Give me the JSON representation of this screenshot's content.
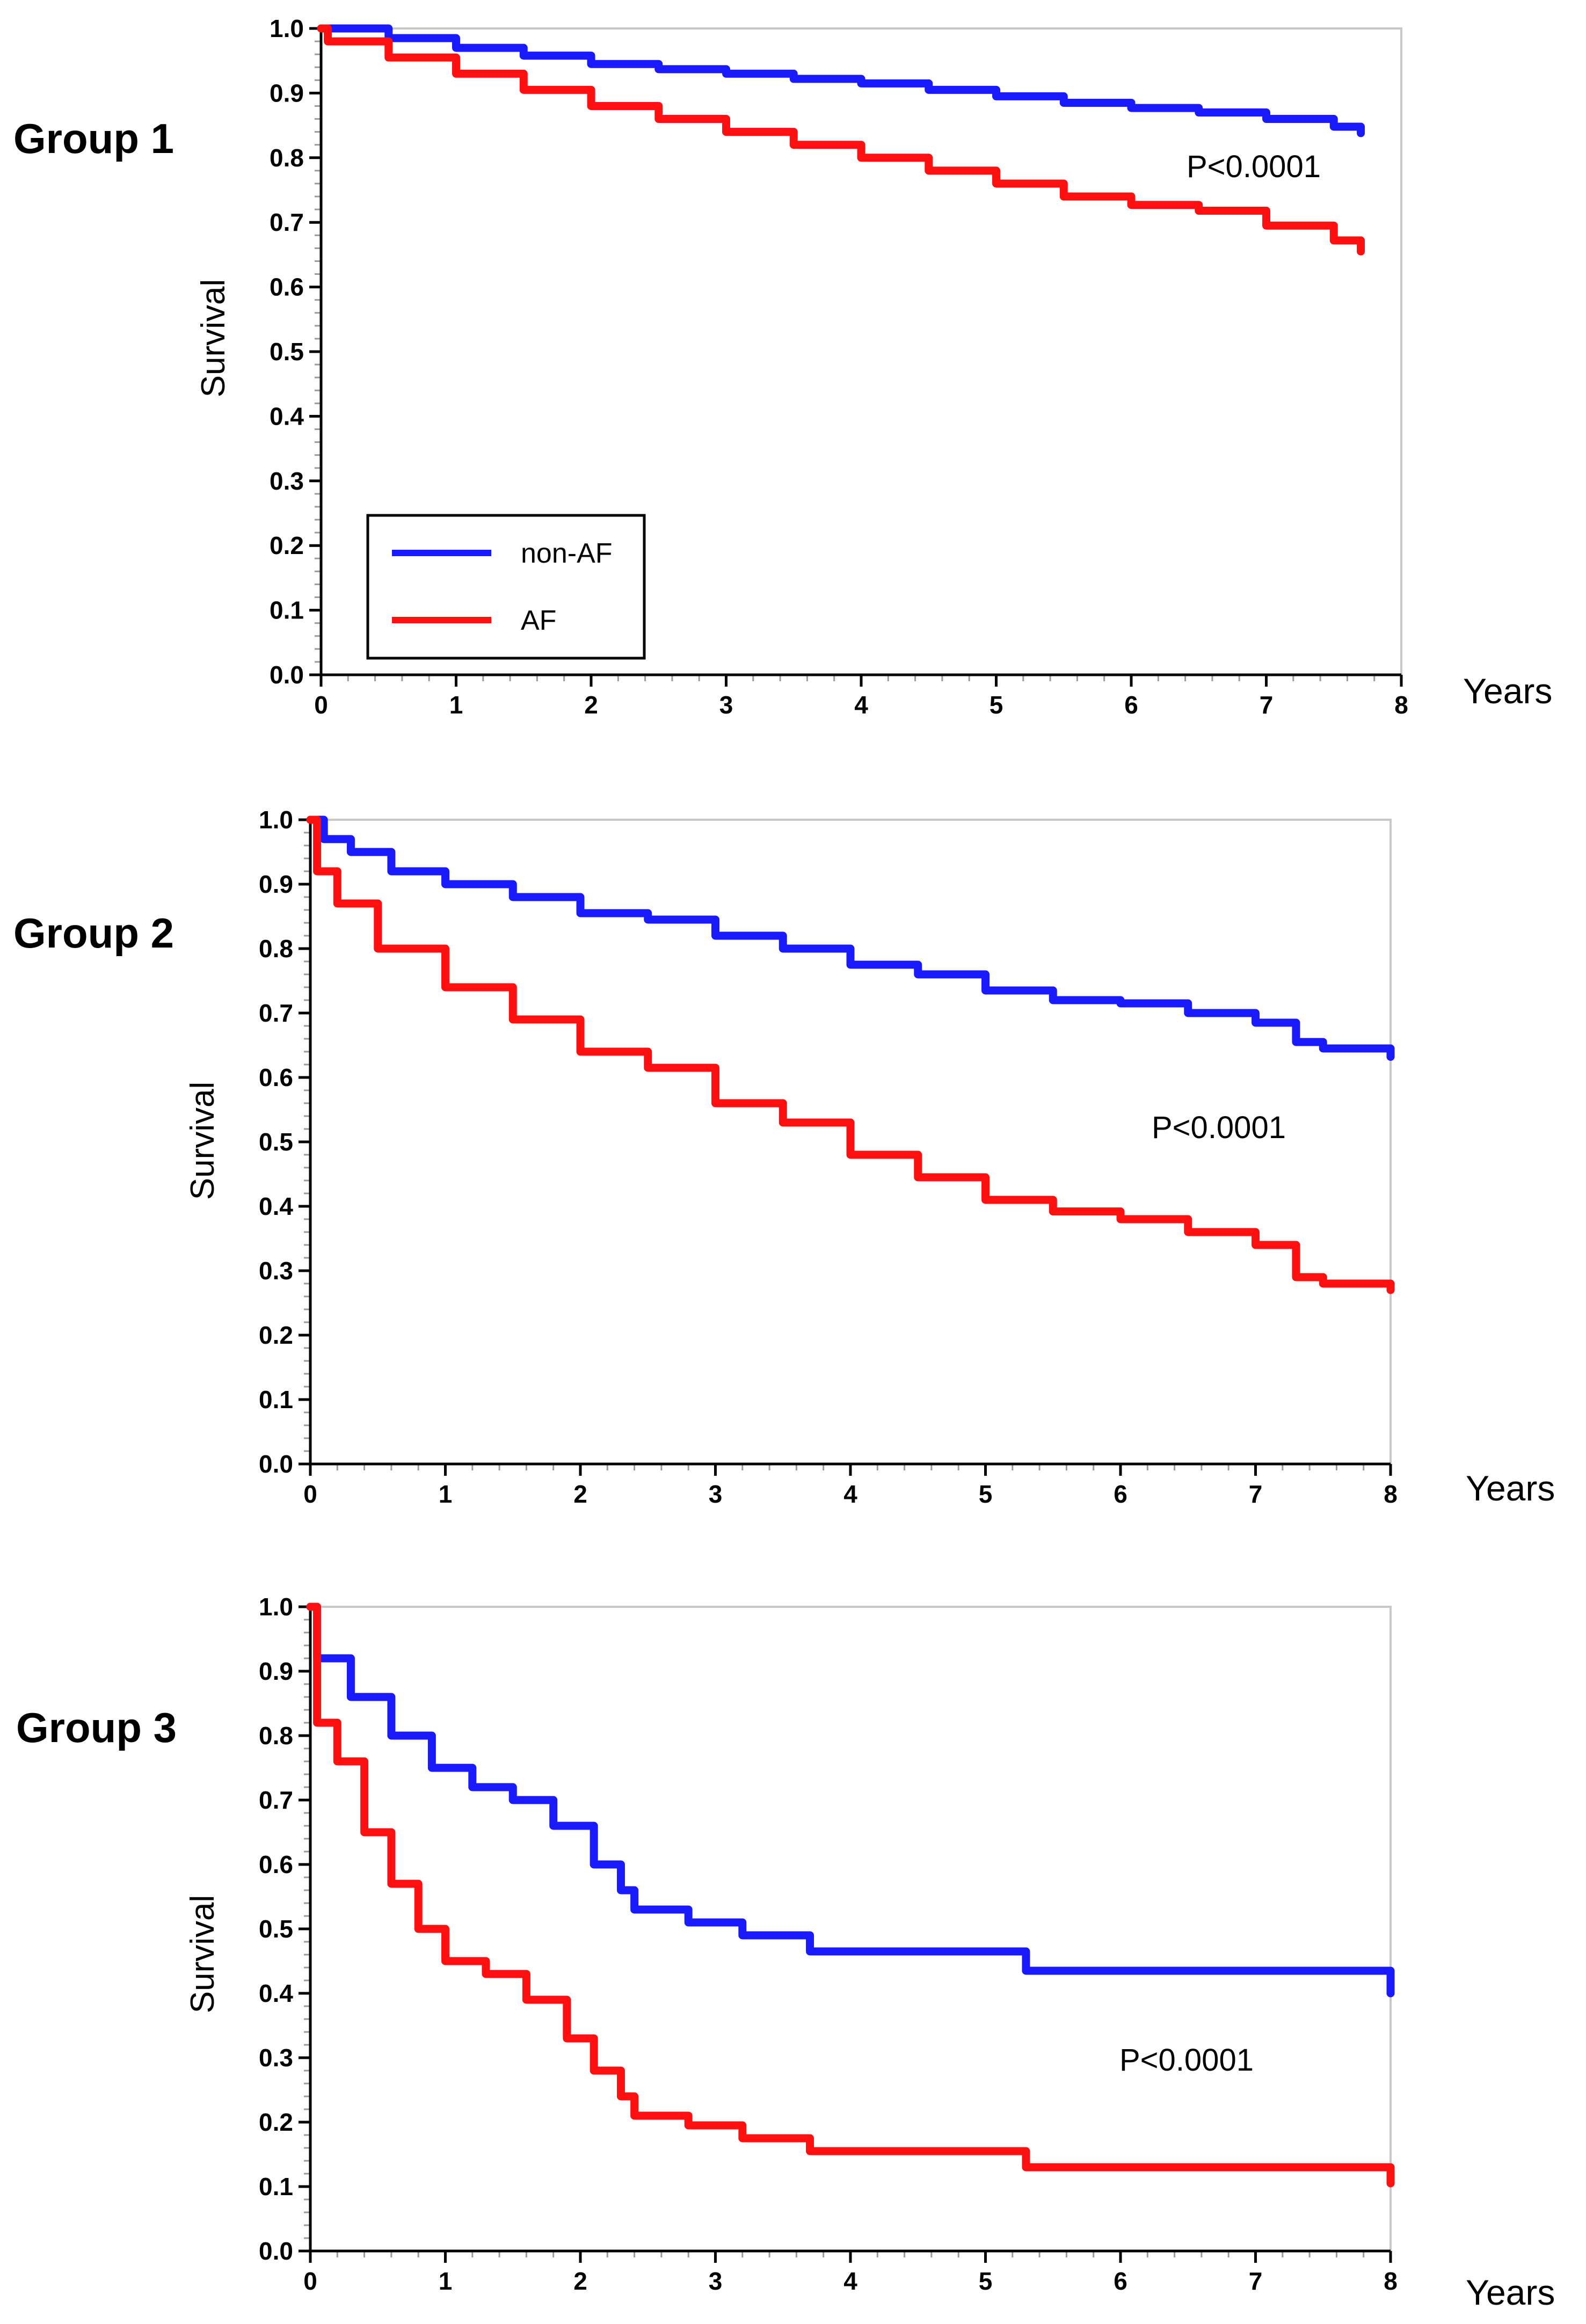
{
  "colors": {
    "non_af": "#1a1aff",
    "af": "#ff1010",
    "frame": "#c8c8c8",
    "axis": "#000000",
    "minor_tick": "#9a9a9a"
  },
  "legend": {
    "items": [
      {
        "label": "non-AF",
        "color": "#1a1aff"
      },
      {
        "label": "AF",
        "color": "#ff1010"
      }
    ],
    "shown_in_panel": 1
  },
  "chart_data": [
    {
      "type": "line",
      "title": "Group  1",
      "ylabel": "Survival",
      "xlabel": "Years",
      "xlim": [
        0,
        8
      ],
      "ylim": [
        0,
        1
      ],
      "xticks": [
        "0",
        "1",
        "2",
        "3",
        "4",
        "5",
        "6",
        "7",
        "8"
      ],
      "yticks": [
        "0.0",
        "0.1",
        "0.2",
        "0.3",
        "0.4",
        "0.5",
        "0.6",
        "0.7",
        "0.8",
        "0.9",
        "1.0"
      ],
      "annotation": {
        "text": "P<0.0001"
      },
      "series": [
        {
          "name": "non-AF",
          "x": [
            0,
            0.5,
            1,
            1.5,
            2,
            2.5,
            3,
            3.5,
            4,
            4.5,
            5,
            5.5,
            6,
            6.5,
            7,
            7.5,
            7.7
          ],
          "y": [
            1.0,
            0.985,
            0.97,
            0.958,
            0.945,
            0.937,
            0.93,
            0.922,
            0.915,
            0.905,
            0.895,
            0.885,
            0.877,
            0.87,
            0.86,
            0.848,
            0.838
          ]
        },
        {
          "name": "AF",
          "x": [
            0,
            0.05,
            0.5,
            1,
            1.5,
            2,
            2.5,
            3,
            3.5,
            4,
            4.5,
            5,
            5.5,
            6,
            6.5,
            7,
            7.5,
            7.7
          ],
          "y": [
            1.0,
            0.98,
            0.955,
            0.93,
            0.905,
            0.88,
            0.86,
            0.84,
            0.82,
            0.8,
            0.78,
            0.76,
            0.74,
            0.727,
            0.718,
            0.695,
            0.672,
            0.655
          ]
        }
      ]
    },
    {
      "type": "line",
      "title": "Group  2",
      "ylabel": "Survival",
      "xlabel": "Years",
      "xlim": [
        0,
        8
      ],
      "ylim": [
        0,
        1
      ],
      "xticks": [
        "0",
        "1",
        "2",
        "3",
        "4",
        "5",
        "6",
        "7",
        "8"
      ],
      "yticks": [
        "0.0",
        "0.1",
        "0.2",
        "0.3",
        "0.4",
        "0.5",
        "0.6",
        "0.7",
        "0.8",
        "0.9",
        "1.0"
      ],
      "annotation": {
        "text": "P<0.0001"
      },
      "series": [
        {
          "name": "non-AF",
          "x": [
            0,
            0.1,
            0.3,
            0.6,
            1,
            1.5,
            2,
            2.5,
            3,
            3.5,
            4,
            4.5,
            5,
            5.5,
            6,
            6.5,
            7,
            7.3,
            7.5,
            8
          ],
          "y": [
            1.0,
            0.97,
            0.95,
            0.92,
            0.9,
            0.88,
            0.855,
            0.845,
            0.82,
            0.8,
            0.775,
            0.76,
            0.735,
            0.72,
            0.715,
            0.7,
            0.685,
            0.655,
            0.645,
            0.632
          ]
        },
        {
          "name": "AF",
          "x": [
            0,
            0.05,
            0.2,
            0.5,
            1,
            1.5,
            2,
            2.5,
            3,
            3.5,
            4,
            4.5,
            5,
            5.5,
            6,
            6.5,
            7,
            7.3,
            7.5,
            8
          ],
          "y": [
            1.0,
            0.92,
            0.87,
            0.8,
            0.74,
            0.69,
            0.64,
            0.615,
            0.56,
            0.53,
            0.48,
            0.445,
            0.41,
            0.392,
            0.38,
            0.36,
            0.34,
            0.29,
            0.28,
            0.27
          ]
        }
      ]
    },
    {
      "type": "line",
      "title": "Group  3",
      "ylabel": "Survival",
      "xlabel": "Years",
      "xlim": [
        0,
        8
      ],
      "ylim": [
        0,
        1
      ],
      "xticks": [
        "0",
        "1",
        "2",
        "3",
        "4",
        "5",
        "6",
        "7",
        "8"
      ],
      "yticks": [
        "0.0",
        "0.1",
        "0.2",
        "0.3",
        "0.4",
        "0.5",
        "0.6",
        "0.7",
        "0.8",
        "0.9",
        "1.0"
      ],
      "annotation": {
        "text": "P<0.0001"
      },
      "series": [
        {
          "name": "non-AF",
          "x": [
            0,
            0.05,
            0.3,
            0.6,
            0.9,
            1.2,
            1.5,
            1.8,
            2.1,
            2.3,
            2.4,
            2.8,
            3.2,
            3.7,
            5.3,
            7.0,
            8.0
          ],
          "y": [
            1.0,
            0.92,
            0.86,
            0.8,
            0.75,
            0.72,
            0.7,
            0.66,
            0.6,
            0.56,
            0.53,
            0.51,
            0.49,
            0.465,
            0.435,
            0.435,
            0.4
          ]
        },
        {
          "name": "AF",
          "x": [
            0,
            0.05,
            0.2,
            0.4,
            0.6,
            0.8,
            1.0,
            1.3,
            1.6,
            1.9,
            2.1,
            2.3,
            2.4,
            2.8,
            3.2,
            3.7,
            5.3,
            7.0,
            8.0
          ],
          "y": [
            1.0,
            0.82,
            0.76,
            0.65,
            0.57,
            0.5,
            0.45,
            0.43,
            0.39,
            0.33,
            0.28,
            0.24,
            0.21,
            0.195,
            0.175,
            0.155,
            0.13,
            0.13,
            0.105
          ]
        }
      ]
    }
  ]
}
